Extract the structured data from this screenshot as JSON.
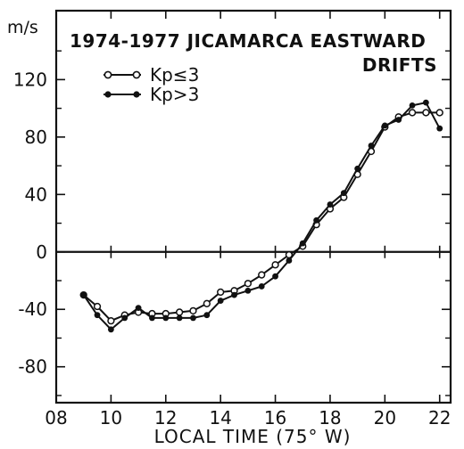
{
  "chart_data": {
    "type": "line",
    "title_line1": "1974-1977 JICAMARCA EASTWARD",
    "title_line2": "DRIFTS",
    "xlabel": "LOCAL TIME (75° W)",
    "ylabel": "m/s",
    "xlim": [
      8,
      22.4
    ],
    "ylim": [
      -105,
      168
    ],
    "xticks": [
      8,
      10,
      12,
      14,
      16,
      18,
      20,
      22
    ],
    "xtick_labels": [
      "08",
      "10",
      "12",
      "14",
      "16",
      "18",
      "20",
      "22"
    ],
    "yticks": [
      -80,
      -40,
      0,
      40,
      80,
      120
    ],
    "ytick_labels": [
      "-80",
      "-40",
      "0",
      "40",
      "80",
      "120"
    ],
    "zero_line": true,
    "grid": false,
    "legend_position": "top-left",
    "series": [
      {
        "name": "Kp≤3",
        "marker": "open-circle",
        "x": [
          9.0,
          9.5,
          10.0,
          10.5,
          11.0,
          11.5,
          12.0,
          12.5,
          13.0,
          13.5,
          14.0,
          14.5,
          15.0,
          15.5,
          16.0,
          16.5,
          17.0,
          17.5,
          18.0,
          18.5,
          19.0,
          19.5,
          20.0,
          20.5,
          21.0,
          21.5,
          22.0
        ],
        "y": [
          -30,
          -38,
          -48,
          -44,
          -42,
          -43,
          -43,
          -42,
          -41,
          -36,
          -28,
          -27,
          -22,
          -16,
          -9,
          -2,
          4,
          19,
          30,
          38,
          54,
          70,
          87,
          94,
          97,
          97,
          97
        ]
      },
      {
        "name": "Kp>3",
        "marker": "filled-circle",
        "x": [
          9.0,
          9.5,
          10.0,
          10.5,
          11.0,
          11.5,
          12.0,
          12.5,
          13.0,
          13.5,
          14.0,
          14.5,
          15.0,
          15.5,
          16.0,
          16.5,
          17.0,
          17.5,
          18.0,
          18.5,
          19.0,
          19.5,
          20.0,
          20.5,
          21.0,
          21.5,
          22.0
        ],
        "y": [
          -30,
          -44,
          -54,
          -46,
          -39,
          -46,
          -46,
          -46,
          -46,
          -44,
          -34,
          -30,
          -27,
          -24,
          -17,
          -6,
          6,
          22,
          33,
          41,
          58,
          74,
          88,
          92,
          102,
          104,
          86
        ]
      }
    ]
  }
}
